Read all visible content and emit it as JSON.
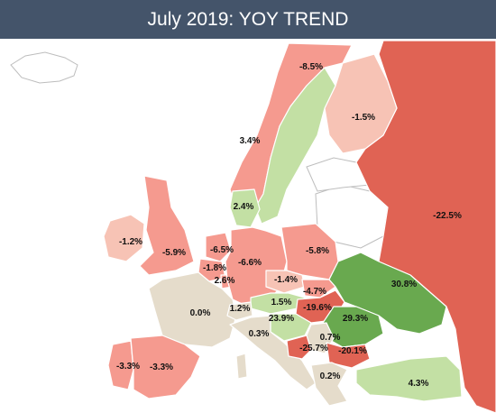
{
  "title": "July 2019: YOY TREND",
  "colors": {
    "strong_decline": "#e06354",
    "decline": "#f59a8f",
    "mild_decline": "#f7c3b5",
    "flat": "#e5dccb",
    "growth": "#c3e0a4",
    "strong_growth": "#69a94f",
    "no_data": "#ffffff"
  },
  "regions": [
    {
      "name": "Norway",
      "value": "-8.5%"
    },
    {
      "name": "Sweden",
      "value": "3.4%"
    },
    {
      "name": "Finland",
      "value": "-1.5%"
    },
    {
      "name": "Russia",
      "value": "-22.5%"
    },
    {
      "name": "Denmark",
      "value": "2.4%"
    },
    {
      "name": "Ireland",
      "value": "-1.2%"
    },
    {
      "name": "United Kingdom",
      "value": "-5.9%"
    },
    {
      "name": "Netherlands",
      "value": "-6.5%"
    },
    {
      "name": "Belgium",
      "value": "-1.8%"
    },
    {
      "name": "Luxembourg",
      "value": "2.6%"
    },
    {
      "name": "Germany",
      "value": "-6.6%"
    },
    {
      "name": "Poland",
      "value": "-5.8%"
    },
    {
      "name": "Czechia",
      "value": "-1.4%"
    },
    {
      "name": "Slovakia",
      "value": "-4.7%"
    },
    {
      "name": "Austria",
      "value": "1.5%"
    },
    {
      "name": "Hungary",
      "value": "-19.6%"
    },
    {
      "name": "Ukraine",
      "value": "30.8%"
    },
    {
      "name": "France",
      "value": "0.0%"
    },
    {
      "name": "Switzerland",
      "value": "1.2%"
    },
    {
      "name": "Slovenia",
      "value": "23.9%"
    },
    {
      "name": "Romania",
      "value": "29.3%"
    },
    {
      "name": "Italy",
      "value": "0.3%"
    },
    {
      "name": "Serbia",
      "value": "0.7%"
    },
    {
      "name": "Bosnia",
      "value": "-25.7%"
    },
    {
      "name": "Bulgaria",
      "value": "-20.1%"
    },
    {
      "name": "Portugal",
      "value": "-3.3%"
    },
    {
      "name": "Spain",
      "value": "-3.3%"
    },
    {
      "name": "Greece",
      "value": "0.2%"
    },
    {
      "name": "Turkey",
      "value": "4.3%"
    }
  ]
}
